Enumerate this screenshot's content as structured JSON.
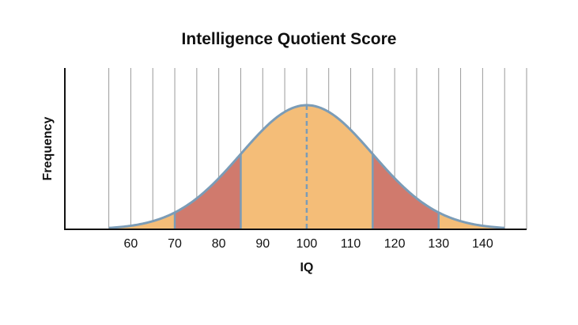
{
  "chart_data": {
    "type": "area",
    "title": "Intelligence Quotient Score",
    "xlabel": "IQ",
    "ylabel": "Frequency",
    "xlim": [
      45,
      150
    ],
    "x_ticks": [
      60,
      70,
      80,
      90,
      100,
      110,
      120,
      130,
      140
    ],
    "grid_x": [
      55,
      60,
      65,
      70,
      75,
      80,
      85,
      90,
      95,
      100,
      105,
      110,
      115,
      120,
      125,
      130,
      135,
      140,
      145,
      150
    ],
    "distribution": {
      "kind": "normal",
      "mean": 100,
      "sd": 15,
      "x_start": 55,
      "x_end": 145
    },
    "mean_line": 100,
    "shaded_regions": [
      {
        "from": 55,
        "to": 70,
        "color": "#f4bd78"
      },
      {
        "from": 70,
        "to": 85,
        "color": "#d07a6d"
      },
      {
        "from": 85,
        "to": 115,
        "color": "#f4bd78"
      },
      {
        "from": 115,
        "to": 130,
        "color": "#d07a6d"
      },
      {
        "from": 130,
        "to": 145,
        "color": "#f4bd78"
      }
    ],
    "boundaries": [
      70,
      85,
      115,
      130
    ],
    "colors": {
      "curve": "#7b9cb7",
      "grid": "#9a9a9a",
      "axis": "#111111"
    }
  }
}
